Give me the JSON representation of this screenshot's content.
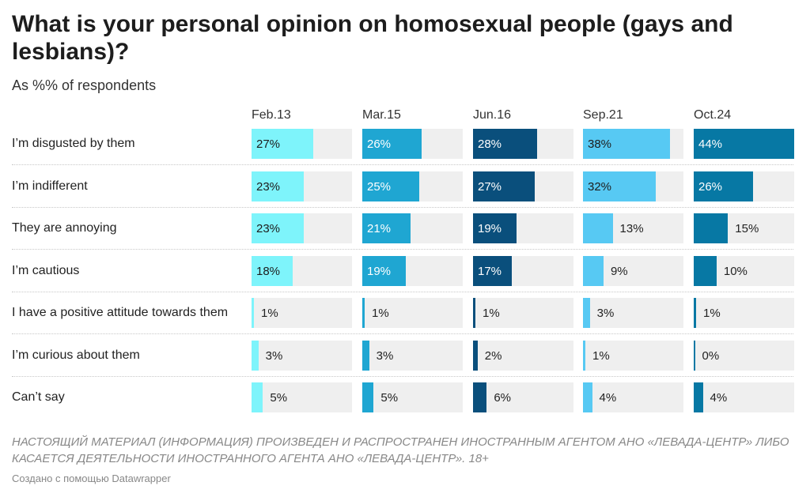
{
  "title": "What is your personal opinion on homosexual people (gays and lesbians)?",
  "subtitle": "As %% of respondents",
  "footer": {
    "note": "НАСТОЯЩИЙ МАТЕРИАЛ (ИНФОРМАЦИЯ) ПРОИЗВЕДЕН И РАСПРОСТРАНЕН ИНОСТРАННЫМ АГЕНТОМ АНО «ЛЕВАДА-ЦЕНТР» ЛИБО КАСАЕТСЯ ДЕЯТЕЛЬНОСТИ ИНОСТРАННОГО АГЕНТА АНО «ЛЕВАДА-ЦЕНТР». 18+",
    "credit": "Создано с помощью Datawrapper"
  },
  "colors": {
    "Feb.13": "#7ef4fb",
    "Mar.15": "#1fa6d2",
    "Jun.16": "#0a4f7c",
    "Sep.21": "#57c9f3",
    "Oct.24": "#0778a4",
    "track": "#efefef"
  },
  "chart_data": {
    "type": "bar",
    "layout": "small-multiples",
    "unit": "%",
    "xlim": [
      0,
      44
    ],
    "categories": [
      "I’m disgusted by them",
      "I’m indifferent",
      "They are annoying",
      "I’m cautious",
      "I have a positive attitude towards them",
      "I’m curious about them",
      "Can’t say"
    ],
    "series": [
      {
        "name": "Feb.13",
        "values": [
          27,
          23,
          23,
          18,
          1,
          3,
          5
        ],
        "labels": [
          "27%",
          "23%",
          "23%",
          "18%",
          "1%",
          "3%",
          "5%"
        ]
      },
      {
        "name": "Mar.15",
        "values": [
          26,
          25,
          21,
          19,
          1,
          3,
          5
        ],
        "labels": [
          "26%",
          "25%",
          "21%",
          "19%",
          "1%",
          "3%",
          "5%"
        ]
      },
      {
        "name": "Jun.16",
        "values": [
          28,
          27,
          19,
          17,
          1,
          2,
          6
        ],
        "labels": [
          "28%",
          "27%",
          "19%",
          "17%",
          "1%",
          "2%",
          "6%"
        ]
      },
      {
        "name": "Sep.21",
        "values": [
          38,
          32,
          13,
          9,
          3,
          1,
          4
        ],
        "labels": [
          "38%",
          "32%",
          "13%",
          "9%",
          "3%",
          "1%",
          "4%"
        ]
      },
      {
        "name": "Oct.24",
        "values": [
          44,
          26,
          15,
          10,
          1,
          0,
          4
        ],
        "labels": [
          "44%",
          "26%",
          "15%",
          "10%",
          "1%",
          "0%",
          "4%"
        ]
      }
    ]
  }
}
